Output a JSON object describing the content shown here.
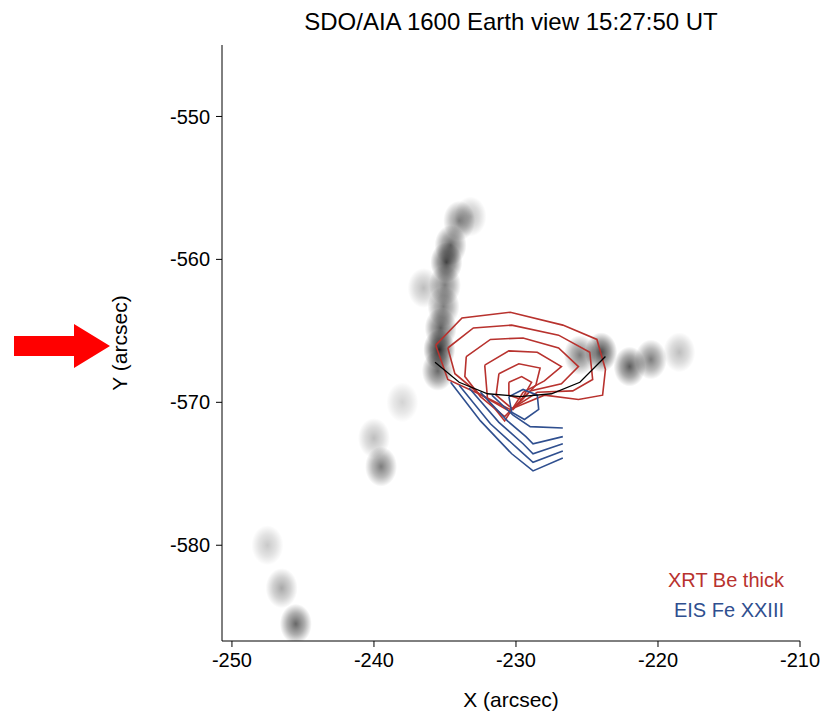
{
  "chart_data": {
    "type": "contour",
    "title": "SDO/AIA 1600 Earth view 15:27:50 UT",
    "x_label": "X (arcsec)",
    "y_label": "Y (arcsec)",
    "xlim": [
      -250.7,
      -210
    ],
    "ylim": [
      -586.7,
      -545
    ],
    "xticks": [
      -250,
      -240,
      -230,
      -220,
      -210
    ],
    "yticks": [
      -580,
      -570,
      -560,
      -550
    ],
    "legend": "lower right",
    "image": [
      {
        "x": -234.0,
        "y": -557.3,
        "intensity": 0.55
      },
      {
        "x": -233.2,
        "y": -557.0,
        "intensity": 0.3
      },
      {
        "x": -234.6,
        "y": -559.0,
        "intensity": 0.7
      },
      {
        "x": -234.9,
        "y": -560.2,
        "intensity": 0.85
      },
      {
        "x": -235.0,
        "y": -561.8,
        "intensity": 0.6
      },
      {
        "x": -236.5,
        "y": -562.0,
        "intensity": 0.3
      },
      {
        "x": -235.1,
        "y": -563.3,
        "intensity": 0.6
      },
      {
        "x": -235.3,
        "y": -564.8,
        "intensity": 0.75
      },
      {
        "x": -235.4,
        "y": -566.3,
        "intensity": 1.0
      },
      {
        "x": -235.5,
        "y": -567.8,
        "intensity": 0.7
      },
      {
        "x": -225.5,
        "y": -566.7,
        "intensity": 0.6
      },
      {
        "x": -224.0,
        "y": -566.5,
        "intensity": 0.85
      },
      {
        "x": -222.0,
        "y": -567.5,
        "intensity": 0.75
      },
      {
        "x": -220.5,
        "y": -567.0,
        "intensity": 0.6
      },
      {
        "x": -218.5,
        "y": -566.5,
        "intensity": 0.3
      },
      {
        "x": -238.0,
        "y": -570.0,
        "intensity": 0.2
      },
      {
        "x": -240.0,
        "y": -572.5,
        "intensity": 0.3
      },
      {
        "x": -239.5,
        "y": -574.5,
        "intensity": 0.6
      },
      {
        "x": -247.5,
        "y": -580.0,
        "intensity": 0.25
      },
      {
        "x": -246.5,
        "y": -583.0,
        "intensity": 0.4
      },
      {
        "x": -245.5,
        "y": -585.5,
        "intensity": 0.7
      }
    ],
    "series": [
      {
        "name": "XRT Be thick",
        "color": "#b8322e",
        "contours": [
          [
            [
              -235.65,
              -566.0
            ],
            [
              -233.8,
              -564.1
            ],
            [
              -230.4,
              -563.7
            ],
            [
              -226.7,
              -564.6
            ],
            [
              -224.3,
              -565.6
            ],
            [
              -223.7,
              -567.7
            ],
            [
              -223.9,
              -569.5
            ],
            [
              -225.6,
              -569.8
            ],
            [
              -228.0,
              -569.5
            ],
            [
              -230.4,
              -570.5
            ],
            [
              -232.4,
              -569.5
            ],
            [
              -234.8,
              -568.4
            ],
            [
              -235.65,
              -566.0
            ]
          ],
          [
            [
              -234.8,
              -566.2
            ],
            [
              -233.0,
              -564.8
            ],
            [
              -230.3,
              -564.6
            ],
            [
              -227.0,
              -565.3
            ],
            [
              -224.8,
              -566.5
            ],
            [
              -224.6,
              -568.4
            ],
            [
              -226.0,
              -569.2
            ],
            [
              -228.5,
              -569.3
            ],
            [
              -230.5,
              -570.6
            ],
            [
              -232.6,
              -569.4
            ],
            [
              -234.3,
              -568.0
            ],
            [
              -234.8,
              -566.2
            ]
          ],
          [
            [
              -233.5,
              -566.8
            ],
            [
              -231.8,
              -565.6
            ],
            [
              -229.5,
              -565.5
            ],
            [
              -227.0,
              -566.2
            ],
            [
              -225.6,
              -567.5
            ],
            [
              -226.8,
              -568.7
            ],
            [
              -229.0,
              -569.2
            ],
            [
              -230.8,
              -571.0
            ],
            [
              -232.5,
              -569.6
            ],
            [
              -233.6,
              -568.2
            ],
            [
              -233.5,
              -566.8
            ]
          ],
          [
            [
              -232.2,
              -567.4
            ],
            [
              -230.5,
              -566.4
            ],
            [
              -228.5,
              -566.5
            ],
            [
              -226.8,
              -567.5
            ],
            [
              -228.0,
              -568.5
            ],
            [
              -229.5,
              -569.3
            ],
            [
              -230.8,
              -571.3
            ],
            [
              -232.0,
              -569.8
            ],
            [
              -232.2,
              -567.4
            ]
          ],
          [
            [
              -231.2,
              -568.0
            ],
            [
              -229.8,
              -567.3
            ],
            [
              -228.3,
              -567.6
            ],
            [
              -228.6,
              -568.8
            ],
            [
              -230.2,
              -570.5
            ],
            [
              -231.4,
              -569.5
            ],
            [
              -231.2,
              -568.0
            ]
          ],
          [
            [
              -230.5,
              -568.6
            ],
            [
              -229.6,
              -568.2
            ],
            [
              -228.9,
              -568.6
            ],
            [
              -229.6,
              -569.8
            ],
            [
              -230.5,
              -569.5
            ],
            [
              -230.5,
              -568.6
            ]
          ]
        ]
      },
      {
        "name": "EIS Fe XXIII",
        "color": "#2f4f8f",
        "contours": [
          [
            [
              -234.6,
              -568.6
            ],
            [
              -232.5,
              -571.3
            ],
            [
              -230.3,
              -573.6
            ],
            [
              -228.8,
              -574.8
            ],
            [
              -226.7,
              -573.9
            ]
          ],
          [
            [
              -234.0,
              -568.8
            ],
            [
              -231.8,
              -571.5
            ],
            [
              -229.7,
              -573.4
            ],
            [
              -228.8,
              -574.2
            ],
            [
              -226.7,
              -573.4
            ]
          ],
          [
            [
              -233.3,
              -569.0
            ],
            [
              -231.2,
              -571.4
            ],
            [
              -229.5,
              -572.9
            ],
            [
              -228.8,
              -573.6
            ],
            [
              -226.7,
              -572.9
            ]
          ],
          [
            [
              -232.5,
              -569.3
            ],
            [
              -230.6,
              -571.3
            ],
            [
              -229.3,
              -572.4
            ],
            [
              -228.8,
              -572.9
            ],
            [
              -226.7,
              -572.4
            ]
          ],
          [
            [
              -231.7,
              -569.5
            ],
            [
              -230.2,
              -570.9
            ],
            [
              -229.0,
              -571.7
            ],
            [
              -226.7,
              -571.8
            ]
          ],
          [
            [
              -230.5,
              -569.6
            ],
            [
              -229.5,
              -569.1
            ],
            [
              -228.5,
              -569.5
            ],
            [
              -228.4,
              -570.5
            ],
            [
              -229.4,
              -571.2
            ],
            [
              -230.3,
              -570.7
            ],
            [
              -230.5,
              -569.6
            ]
          ]
        ]
      }
    ],
    "loop": {
      "color": "#000000",
      "points": [
        [
          -235.7,
          -567.2
        ],
        [
          -234.0,
          -568.6
        ],
        [
          -232.0,
          -569.4
        ],
        [
          -229.7,
          -569.6
        ],
        [
          -227.5,
          -569.4
        ],
        [
          -225.5,
          -568.6
        ],
        [
          -223.7,
          -566.8
        ]
      ]
    }
  }
}
